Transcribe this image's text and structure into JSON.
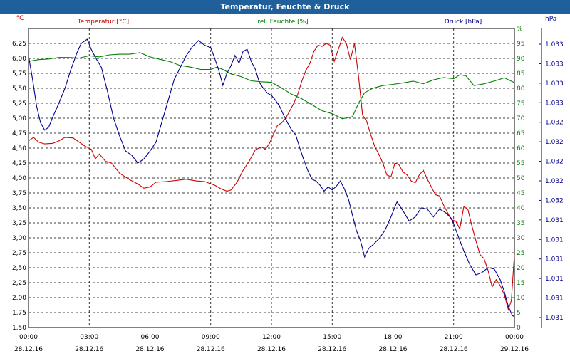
{
  "window": {
    "title": "Temperatur, Feuchte & Druck"
  },
  "chart_data": {
    "type": "line",
    "x_labels": [
      "00:00",
      "03:00",
      "06:00",
      "09:00",
      "12:00",
      "15:00",
      "18:00",
      "21:00",
      "00:00"
    ],
    "x_dates": [
      "28.12.16",
      "28.12.16",
      "28.12.16",
      "28.12.16",
      "28.12.16",
      "28.12.16",
      "28.12.16",
      "28.12.16",
      "29.12.16"
    ],
    "x_range_hours": [
      0,
      24
    ],
    "grid": true,
    "axes": {
      "temperature": {
        "unit": "°C",
        "range": [
          1.5,
          6.5
        ],
        "ticks": [
          "1,50",
          "1,75",
          "2,00",
          "2,25",
          "2,50",
          "2,75",
          "3,00",
          "3,25",
          "3,50",
          "3,75",
          "4,00",
          "4,25",
          "4,50",
          "4,75",
          "5,00",
          "5,25",
          "5,50",
          "5,75",
          "6,00",
          "6,25"
        ],
        "color": "#cc0000"
      },
      "humidity": {
        "unit": "%",
        "range": [
          0,
          100
        ],
        "ticks": [
          "0",
          "5",
          "10",
          "15",
          "20",
          "25",
          "30",
          "35",
          "40",
          "45",
          "50",
          "55",
          "60",
          "65",
          "70",
          "75",
          "80",
          "85",
          "90",
          "95",
          "%"
        ],
        "color": "#008000"
      },
      "pressure": {
        "unit": "hPa",
        "ticks": [
          "1.031",
          "1.031",
          "1.031",
          "1.031",
          "1.031",
          "1.031",
          "1.032",
          "1.032",
          "1.032",
          "1.032",
          "1.032",
          "1.033",
          "1.033",
          "1.033",
          "1.033"
        ],
        "color": "#00008b"
      }
    },
    "series": [
      {
        "name": "Temperatur [°C]",
        "color": "#cc0000",
        "axis": "temperature",
        "points": [
          [
            0,
            4.62
          ],
          [
            0.25,
            4.68
          ],
          [
            0.5,
            4.6
          ],
          [
            0.8,
            4.57
          ],
          [
            1.2,
            4.58
          ],
          [
            1.5,
            4.62
          ],
          [
            1.8,
            4.68
          ],
          [
            2.2,
            4.67
          ],
          [
            2.5,
            4.6
          ],
          [
            2.8,
            4.53
          ],
          [
            3.1,
            4.48
          ],
          [
            3.3,
            4.32
          ],
          [
            3.5,
            4.4
          ],
          [
            3.8,
            4.28
          ],
          [
            4.1,
            4.25
          ],
          [
            4.5,
            4.08
          ],
          [
            5,
            3.97
          ],
          [
            5.4,
            3.9
          ],
          [
            5.7,
            3.83
          ],
          [
            6,
            3.85
          ],
          [
            6.3,
            3.93
          ],
          [
            6.8,
            3.94
          ],
          [
            7.3,
            3.96
          ],
          [
            7.8,
            3.98
          ],
          [
            8.3,
            3.95
          ],
          [
            8.7,
            3.94
          ],
          [
            9.2,
            3.88
          ],
          [
            9.5,
            3.82
          ],
          [
            9.8,
            3.78
          ],
          [
            10,
            3.8
          ],
          [
            10.3,
            3.93
          ],
          [
            10.6,
            4.13
          ],
          [
            10.9,
            4.28
          ],
          [
            11.2,
            4.47
          ],
          [
            11.5,
            4.52
          ],
          [
            11.7,
            4.48
          ],
          [
            11.9,
            4.58
          ],
          [
            12.1,
            4.73
          ],
          [
            12.3,
            4.88
          ],
          [
            12.5,
            4.92
          ],
          [
            12.7,
            5.0
          ],
          [
            12.9,
            5.12
          ],
          [
            13.1,
            5.25
          ],
          [
            13.3,
            5.4
          ],
          [
            13.5,
            5.62
          ],
          [
            13.7,
            5.8
          ],
          [
            13.9,
            5.92
          ],
          [
            14.1,
            6.12
          ],
          [
            14.3,
            6.22
          ],
          [
            14.5,
            6.2
          ],
          [
            14.7,
            6.25
          ],
          [
            14.9,
            6.22
          ],
          [
            15.1,
            5.95
          ],
          [
            15.3,
            6.15
          ],
          [
            15.5,
            6.35
          ],
          [
            15.7,
            6.25
          ],
          [
            15.9,
            5.98
          ],
          [
            16.1,
            6.25
          ],
          [
            16.3,
            5.7
          ],
          [
            16.5,
            5.05
          ],
          [
            16.7,
            4.95
          ],
          [
            16.9,
            4.73
          ],
          [
            17.1,
            4.53
          ],
          [
            17.3,
            4.4
          ],
          [
            17.5,
            4.25
          ],
          [
            17.7,
            4.05
          ],
          [
            17.9,
            4.02
          ],
          [
            18.1,
            4.25
          ],
          [
            18.3,
            4.22
          ],
          [
            18.5,
            4.1
          ],
          [
            18.7,
            4.05
          ],
          [
            18.9,
            3.95
          ],
          [
            19.1,
            3.92
          ],
          [
            19.3,
            4.05
          ],
          [
            19.5,
            4.13
          ],
          [
            19.7,
            3.98
          ],
          [
            19.9,
            3.85
          ],
          [
            20.1,
            3.72
          ],
          [
            20.3,
            3.7
          ],
          [
            20.5,
            3.55
          ],
          [
            20.7,
            3.42
          ],
          [
            20.9,
            3.3
          ],
          [
            21.1,
            3.28
          ],
          [
            21.3,
            3.15
          ],
          [
            21.5,
            3.52
          ],
          [
            21.7,
            3.48
          ],
          [
            21.9,
            3.2
          ],
          [
            22.1,
            2.95
          ],
          [
            22.3,
            2.72
          ],
          [
            22.5,
            2.65
          ],
          [
            22.7,
            2.45
          ],
          [
            22.9,
            2.18
          ],
          [
            23.1,
            2.3
          ],
          [
            23.3,
            2.2
          ],
          [
            23.5,
            2.05
          ],
          [
            23.7,
            1.8
          ],
          [
            23.85,
            1.95
          ],
          [
            24,
            2.72
          ]
        ]
      },
      {
        "name": "rel. Feuchte [%]",
        "color": "#008000",
        "axis": "humidity",
        "points": [
          [
            0,
            89
          ],
          [
            0.5,
            89.6
          ],
          [
            1,
            89.8
          ],
          [
            1.5,
            90.3
          ],
          [
            2,
            90.3
          ],
          [
            2.5,
            90.1
          ],
          [
            3,
            90.9
          ],
          [
            3.5,
            90.5
          ],
          [
            4,
            91.2
          ],
          [
            4.5,
            91.4
          ],
          [
            5,
            91.4
          ],
          [
            5.5,
            91.9
          ],
          [
            6,
            90.5
          ],
          [
            6.5,
            89.7
          ],
          [
            7,
            88.9
          ],
          [
            7.5,
            87.6
          ],
          [
            8,
            87.1
          ],
          [
            8.5,
            86.3
          ],
          [
            9,
            86.3
          ],
          [
            9.3,
            87.1
          ],
          [
            9.6,
            86.3
          ],
          [
            10,
            84.8
          ],
          [
            10.5,
            83.9
          ],
          [
            11,
            82.5
          ],
          [
            11.5,
            82.2
          ],
          [
            12,
            82.0
          ],
          [
            12.5,
            80.1
          ],
          [
            13,
            78.0
          ],
          [
            13.5,
            76.5
          ],
          [
            14,
            74.5
          ],
          [
            14.5,
            72.5
          ],
          [
            15,
            71.5
          ],
          [
            15.5,
            69.8
          ],
          [
            16,
            70.5
          ],
          [
            16.3,
            75
          ],
          [
            16.6,
            78.5
          ],
          [
            17,
            80.0
          ],
          [
            17.5,
            80.9
          ],
          [
            18,
            81.3
          ],
          [
            18.5,
            81.8
          ],
          [
            19,
            82.4
          ],
          [
            19.5,
            81.5
          ],
          [
            20,
            82.8
          ],
          [
            20.5,
            83.6
          ],
          [
            21,
            83.2
          ],
          [
            21.3,
            84.5
          ],
          [
            21.6,
            84.2
          ],
          [
            22,
            80.9
          ],
          [
            22.5,
            81.5
          ],
          [
            23,
            82.4
          ],
          [
            23.5,
            83.5
          ],
          [
            24,
            81.9
          ]
        ]
      },
      {
        "name": "Druck [hPa]",
        "color": "#00008b",
        "axis": "pressure",
        "points": [
          [
            0,
            6.05
          ],
          [
            0.2,
            5.65
          ],
          [
            0.4,
            5.2
          ],
          [
            0.6,
            4.92
          ],
          [
            0.8,
            4.8
          ],
          [
            1,
            4.85
          ],
          [
            1.2,
            5.02
          ],
          [
            1.5,
            5.25
          ],
          [
            1.8,
            5.5
          ],
          [
            2.1,
            5.82
          ],
          [
            2.4,
            6.1
          ],
          [
            2.6,
            6.25
          ],
          [
            2.9,
            6.32
          ],
          [
            3.1,
            6.15
          ],
          [
            3.3,
            6.02
          ],
          [
            3.6,
            5.85
          ],
          [
            3.9,
            5.45
          ],
          [
            4.2,
            5.0
          ],
          [
            4.5,
            4.7
          ],
          [
            4.8,
            4.45
          ],
          [
            5.1,
            4.38
          ],
          [
            5.4,
            4.25
          ],
          [
            5.7,
            4.32
          ],
          [
            6,
            4.45
          ],
          [
            6.3,
            4.6
          ],
          [
            6.6,
            4.95
          ],
          [
            6.9,
            5.3
          ],
          [
            7.2,
            5.65
          ],
          [
            7.5,
            5.85
          ],
          [
            7.8,
            6.05
          ],
          [
            8.1,
            6.2
          ],
          [
            8.4,
            6.3
          ],
          [
            8.7,
            6.22
          ],
          [
            9,
            6.18
          ],
          [
            9.2,
            6.0
          ],
          [
            9.4,
            5.8
          ],
          [
            9.6,
            5.55
          ],
          [
            9.8,
            5.75
          ],
          [
            10,
            5.88
          ],
          [
            10.2,
            6.05
          ],
          [
            10.4,
            5.92
          ],
          [
            10.6,
            6.12
          ],
          [
            10.8,
            6.15
          ],
          [
            11,
            5.95
          ],
          [
            11.2,
            5.82
          ],
          [
            11.4,
            5.6
          ],
          [
            11.6,
            5.5
          ],
          [
            11.8,
            5.42
          ],
          [
            12,
            5.38
          ],
          [
            12.2,
            5.3
          ],
          [
            12.4,
            5.2
          ],
          [
            12.6,
            5.05
          ],
          [
            12.8,
            4.92
          ],
          [
            13,
            4.8
          ],
          [
            13.2,
            4.72
          ],
          [
            13.4,
            4.5
          ],
          [
            13.6,
            4.3
          ],
          [
            13.8,
            4.12
          ],
          [
            14,
            3.98
          ],
          [
            14.2,
            3.95
          ],
          [
            14.4,
            3.88
          ],
          [
            14.6,
            3.78
          ],
          [
            14.8,
            3.85
          ],
          [
            15,
            3.8
          ],
          [
            15.2,
            3.86
          ],
          [
            15.4,
            3.95
          ],
          [
            15.6,
            3.82
          ],
          [
            15.8,
            3.65
          ],
          [
            16,
            3.38
          ],
          [
            16.2,
            3.12
          ],
          [
            16.4,
            2.95
          ],
          [
            16.6,
            2.68
          ],
          [
            16.8,
            2.82
          ],
          [
            17,
            2.88
          ],
          [
            17.3,
            2.98
          ],
          [
            17.6,
            3.12
          ],
          [
            17.9,
            3.35
          ],
          [
            18.2,
            3.6
          ],
          [
            18.5,
            3.45
          ],
          [
            18.8,
            3.28
          ],
          [
            19.1,
            3.35
          ],
          [
            19.4,
            3.5
          ],
          [
            19.7,
            3.48
          ],
          [
            20,
            3.35
          ],
          [
            20.3,
            3.48
          ],
          [
            20.6,
            3.42
          ],
          [
            20.9,
            3.32
          ],
          [
            21.2,
            3.05
          ],
          [
            21.5,
            2.78
          ],
          [
            21.8,
            2.55
          ],
          [
            22.1,
            2.38
          ],
          [
            22.4,
            2.42
          ],
          [
            22.7,
            2.5
          ],
          [
            23,
            2.48
          ],
          [
            23.3,
            2.3
          ],
          [
            23.5,
            2.1
          ],
          [
            23.7,
            1.85
          ],
          [
            23.9,
            1.7
          ],
          [
            24,
            1.68
          ]
        ]
      }
    ]
  }
}
